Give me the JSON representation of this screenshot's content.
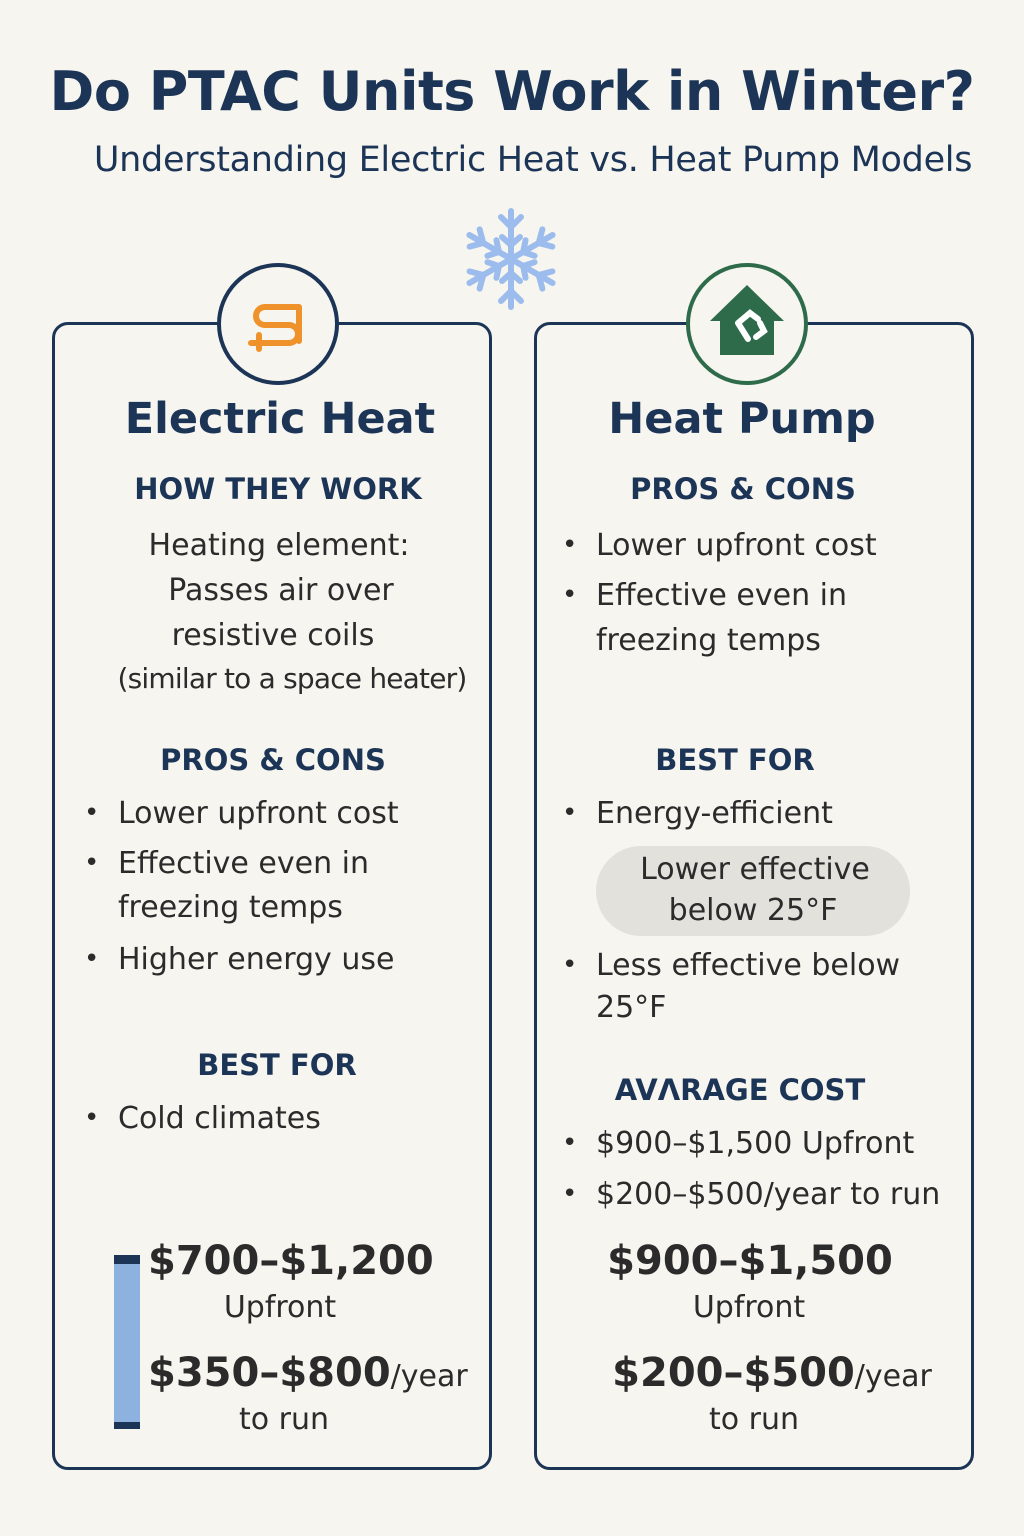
{
  "title": "Do PTAC Units Work in Winter?",
  "subtitle": "Understanding Electric Heat vs. Heat Pump Models",
  "icons": {
    "top": "snowflake-icon",
    "left": "heating-coil-icon",
    "right": "house-recycle-icon"
  },
  "colors": {
    "navy": "#1c3557",
    "orange": "#f0922b",
    "green": "#2e6b4a",
    "snow": "#9bbcec",
    "bar": "#8eb2e0"
  },
  "electric": {
    "heading": "Electric Heat",
    "how_title": "HOW THEY WORK",
    "how_lines": [
      "Heating element:",
      "Passes air over",
      "resistive coils",
      "(similar to a space heater)"
    ],
    "pros_title": "PROS & CONS",
    "pros": [
      "Lower upfront cost",
      "Effective even in",
      "freezing temps",
      "Higher energy use"
    ],
    "best_title": "BEST FOR",
    "best": [
      "Cold climates"
    ],
    "upfront_price": "$700–$1,200",
    "upfront_label": "Upfront",
    "run_price": "$350–$800",
    "run_unit": "/year",
    "run_label": "to run"
  },
  "heatpump": {
    "heading": "Heat Pump",
    "pros_title": "PROS & CONS",
    "pros": [
      "Lower upfront cost",
      "Effective even in",
      "freezing temps"
    ],
    "best_title": "BEST FOR",
    "best": [
      "Energy-efficient",
      "Less effective below",
      "25°F"
    ],
    "pill": [
      "Lower effective",
      "below 25°F"
    ],
    "avg_title": "AVɅRAGE COST",
    "avg": [
      "$900–$1,500 Upfront",
      "$200–$500/year to run"
    ],
    "upfront_price": "$900–$1,500",
    "upfront_label": "Upfront",
    "run_price": "$200–$500",
    "run_unit": "/year",
    "run_label": "to run"
  }
}
